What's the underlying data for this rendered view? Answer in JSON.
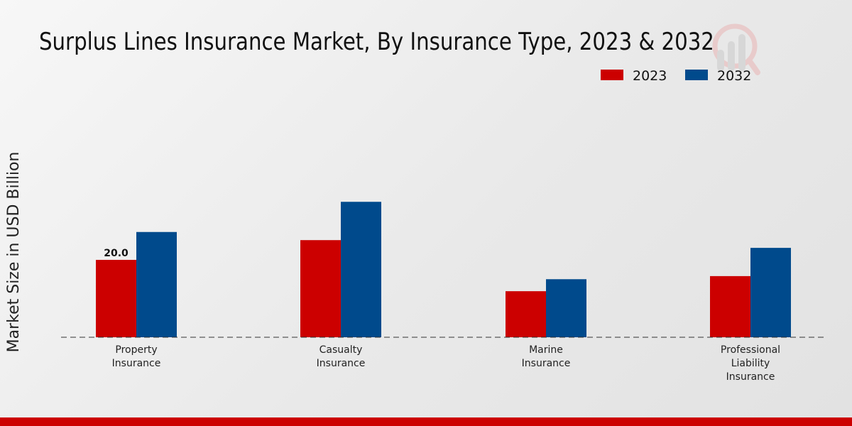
{
  "chart_data": {
    "type": "bar",
    "title": "Surplus Lines Insurance Market, By Insurance Type, 2023 & 2032",
    "xlabel": "",
    "ylabel": "Market Size in USD Billion",
    "categories": [
      "Property Insurance",
      "Casualty Insurance",
      "Marine Insurance",
      "Professional Liability Insurance"
    ],
    "category_lines": [
      [
        "Property",
        "Insurance"
      ],
      [
        "Casualty",
        "Insurance"
      ],
      [
        "Marine",
        "Insurance"
      ],
      [
        "Professional",
        "Liability",
        "Insurance"
      ]
    ],
    "series": [
      {
        "name": "2023",
        "color": "#cc0000",
        "values": [
          20.0,
          25.1,
          11.9,
          15.8
        ]
      },
      {
        "name": "2032",
        "color": "#004a8c",
        "values": [
          27.2,
          35.0,
          15.0,
          23.1
        ]
      }
    ],
    "data_labels": [
      {
        "series": 0,
        "index": 0,
        "text": "20.0"
      }
    ],
    "ylim": [
      0,
      40
    ],
    "grid": false,
    "legend": "top-right"
  }
}
